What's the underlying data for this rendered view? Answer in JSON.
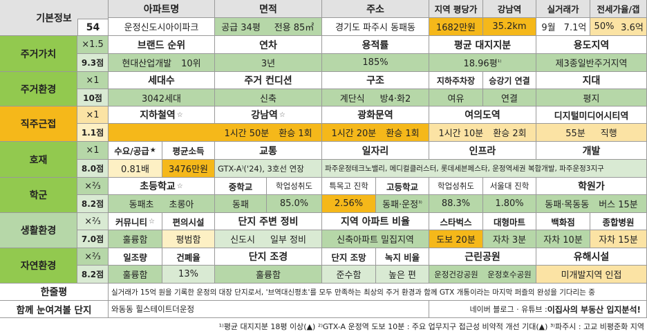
{
  "basic": {
    "label": "기본정보",
    "number": "54",
    "h_apt": "아파트명",
    "h_area": "면적",
    "h_addr": "주소",
    "h_price": "지역 평당가",
    "h_gangnam": "강남역",
    "h_trade": "실거래가",
    "h_jeonse": "전세가율/갭",
    "apt": "운정신도시아이파크",
    "area_supply": "공급 34평",
    "area_use": "전용 85㎡",
    "addr": "경기도 파주시 동패동",
    "price": "1682만원",
    "gangnam": "35.2km",
    "trade_month": "9월",
    "trade_price": "7.1억",
    "jeonse_rate": "50%",
    "gap": "3.6억"
  },
  "residence": {
    "label": "주거가치",
    "weight": "×1.5",
    "score": "9.3점",
    "h_brand": "브랜드 순위",
    "h_age": "연차",
    "h_far": "용적률",
    "h_land": "평균 대지지분",
    "h_zone": "용도지역",
    "brand": "현대산업개발",
    "brand_rank": "10위",
    "age": "3년",
    "far": "185%",
    "land": "18.96평",
    "land_note": "¹⁾",
    "zone": "제3종일반주거지역"
  },
  "environment": {
    "label": "주거환경",
    "weight": "×1",
    "score": "10점",
    "h_units": "세대수",
    "h_cond": "주거 컨디션",
    "h_struct": "구조",
    "h_parking": "지하주차장",
    "h_elev": "승강기 연결",
    "h_terrain": "지대",
    "units": "3042세대",
    "cond": "신축",
    "struct_type": "계단식",
    "struct_rooms": "방4·화2",
    "parking": "여유",
    "elev": "연결",
    "terrain": "평지"
  },
  "commute": {
    "label": "직주근접",
    "weight": "×1",
    "score": "1.1점",
    "h_subway": "지하철역",
    "h_gangnam": "강남역",
    "h_gwanghwamun": "광화문역",
    "h_yeouido": "여의도역",
    "h_dmc": "디지털미디어시티역",
    "star": "☆",
    "subway": "",
    "gangnam_time": "1시간 50분",
    "gangnam_transfer": "환승 1회",
    "gwanghwamun_time": "1시간 20분",
    "gwanghwamun_transfer": "환승 1회",
    "yeouido_time": "1시간 10분",
    "yeouido_transfer": "환승 2회",
    "dmc_time": "55분",
    "dmc_transfer": "직행"
  },
  "development": {
    "label": "호재",
    "weight": "×1",
    "score": "8.0점",
    "h_supply": "수요/공급",
    "supply_star": "★",
    "h_income": "평균소득",
    "h_traffic": "교통",
    "h_jobs": "일자리",
    "h_infra": "인프라",
    "h_dev": "개발",
    "supply": "0.81배",
    "income": "3476만원",
    "traffic": "GTX-A⁾('24), 3호선 연장",
    "infra_line": "파주운정테크노밸리, 메디컬클러스터, 롯데세븐페스타, 운정역세권 복합개발, 파주운정3지구"
  },
  "school": {
    "label": "학군",
    "weight": "×⅔",
    "score": "8.2점",
    "h_elem": "초등학교",
    "h_mid": "중학교",
    "h_mid_rate": "학업성취도",
    "h_special": "특목고 진학",
    "h_high": "고등학교",
    "h_high_rate": "학업성취도",
    "h_snu": "서울대 진학",
    "h_academy": "학원가",
    "elem": "동패초",
    "elem_extra": "초롱아",
    "mid": "동패",
    "mid_rate": "85.0%",
    "special": "2.56%",
    "high": "동패·운정",
    "high_note": "³⁾",
    "high_rate": "88.3%",
    "snu": "1.80%",
    "academy": "동패·목동동",
    "academy_time": "버스 15분"
  },
  "living": {
    "label": "생활환경",
    "weight": "×⅔",
    "score": "7.0점",
    "h_community": "커뮤니티",
    "h_facility": "편의시설",
    "h_surround": "단지 주변 정비",
    "h_ratio": "지역 아파트 비율",
    "h_starbucks": "스타벅스",
    "h_mart": "대형마트",
    "h_dept": "백화점",
    "h_hospital": "종합병원",
    "community": "훌륭함",
    "facility": "평범함",
    "surround_a": "신도시",
    "surround_b": "일부 정비",
    "ratio": "신축아파트 밀집지역",
    "starbucks": "도보 20분",
    "mart": "자차 3분",
    "dept": "자차 10분",
    "hospital": "자차 15분"
  },
  "nature": {
    "label": "자연환경",
    "weight": "×⅔",
    "score": "8.2점",
    "h_green": "일조량",
    "h_build": "건폐율",
    "h_view": "단지 조경",
    "h_lookout": "단지 조망",
    "h_greenrate": "녹지 비율",
    "h_park": "근린공원",
    "h_hazard": "유해시설",
    "green": "훌륭함",
    "build": "13%",
    "view": "훌륭함",
    "lookout": "준수함",
    "greenrate": "높은 편",
    "park_a": "운정건강공원",
    "park_b": "운정호수공원",
    "hazard": "미개발지역 인접"
  },
  "summary": {
    "label": "한줄평",
    "text": "실거래가 15억 원을 기록한 운정의 대장 단지로서, '브역대신평초'를 모두 만족하는 최상의 주거 환경과 함께 GTX 개통이라는 마지막 퍼즐의 완성을 기다리는 중"
  },
  "related": {
    "label": "함께 눈여겨볼 단지",
    "text": "와동동 힐스테이트더운정",
    "credit": "네이버 블로그 · 유튜브 : ",
    "credit_bold": "이집사의 부동산 입지분석!"
  },
  "footnote": "¹⁾평균 대지지분 18평 이상(▲) ²⁾GTX-A 운정역 도보 10분 : 주요 업무지구 접근성 비약적 개선 기대(▲) ³⁾파주시 : 고교 비평준화 지역"
}
